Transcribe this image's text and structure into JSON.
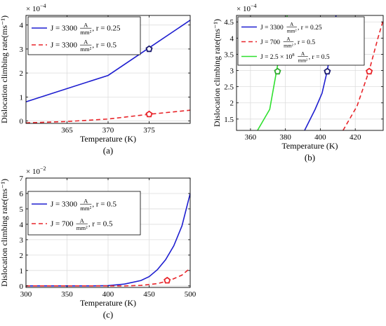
{
  "chart_data": [
    {
      "id": "a",
      "type": "line",
      "panel_label": "(a)",
      "xlabel": "Temperature (K)",
      "ylabel": "Dislocation climbing rate(ms⁻¹)",
      "y_multiplier": "× 10",
      "y_exponent": "−4",
      "xlim": [
        360,
        380
      ],
      "ylim": [
        -0.1,
        4.4
      ],
      "xticks": [
        365,
        370,
        375
      ],
      "yticks": [
        0,
        1,
        2,
        3,
        4
      ],
      "legend_position": "top-left",
      "series": [
        {
          "name_main": "J = 3300",
          "name_num": "A",
          "name_den": "mm²",
          "name_tail": ", r = 0.25",
          "color": "#1f1fd0",
          "dash": "solid",
          "points": [
            [
              360,
              0.8
            ],
            [
              365,
              1.35
            ],
            [
              370,
              1.9
            ],
            [
              375,
              3.05
            ],
            [
              380,
              4.2
            ]
          ]
        },
        {
          "name_main": "J = 3300",
          "name_num": "A",
          "name_den": "mm²",
          "name_tail": ", r = 0.5",
          "color": "#e8252a",
          "dash": "dashed",
          "points": [
            [
              360,
              -0.08
            ],
            [
              365,
              -0.02
            ],
            [
              370,
              0.08
            ],
            [
              375,
              0.28
            ],
            [
              380,
              0.45
            ]
          ]
        }
      ],
      "markers": [
        {
          "x": 375,
          "y": 3.0,
          "color": "#1a1a6e",
          "shape": "pentagon"
        },
        {
          "x": 375,
          "y": 0.28,
          "color": "#e8252a",
          "shape": "pentagon"
        }
      ]
    },
    {
      "id": "b",
      "type": "line",
      "panel_label": "(b)",
      "xlabel": "Temperature (K)",
      "ylabel": "Dislocation climbing rate(ms⁻¹)",
      "y_multiplier": "× 10",
      "y_exponent": "−4",
      "xlim": [
        352,
        436
      ],
      "ylim": [
        1.15,
        4.7
      ],
      "xticks": [
        360,
        380,
        400,
        420
      ],
      "yticks": [
        1.5,
        2,
        2.5,
        3,
        3.5,
        4,
        4.5
      ],
      "legend_position": "top-left",
      "series": [
        {
          "name_main": "J = 3300",
          "name_num": "A",
          "name_den": "mm²",
          "name_tail": ", r = 0.25",
          "color": "#1f1fd0",
          "dash": "solid",
          "points": [
            [
              391,
              1.15
            ],
            [
              397,
              1.8
            ],
            [
              401,
              2.3
            ],
            [
              404,
              3.0
            ],
            [
              407,
              4.0
            ],
            [
              409,
              4.7
            ]
          ]
        },
        {
          "name_main": "J = 700",
          "name_num": "A",
          "name_den": "mm²",
          "name_tail": ", r = 0.5",
          "color": "#e8252a",
          "dash": "dashed",
          "points": [
            [
              413,
              1.15
            ],
            [
              421,
              1.9
            ],
            [
              428,
              3.0
            ],
            [
              433,
              4.0
            ],
            [
              436,
              4.55
            ]
          ]
        },
        {
          "name_main": "J = 2.5 × 10",
          "name_sup": "8",
          "name_num": "A",
          "name_den": "mm²",
          "name_tail": ", r = 0.5",
          "color": "#2ee02e",
          "dash": "solid",
          "points": [
            [
              364,
              1.15
            ],
            [
              371,
              1.8
            ],
            [
              375,
              3.0
            ],
            [
              379,
              4.2
            ],
            [
              381,
              4.7
            ]
          ]
        }
      ],
      "markers": [
        {
          "x": 404,
          "y": 2.97,
          "color": "#1a1a6e",
          "shape": "pentagon"
        },
        {
          "x": 428,
          "y": 2.97,
          "color": "#e8252a",
          "shape": "pentagon"
        },
        {
          "x": 375.5,
          "y": 2.97,
          "color": "#2ea82e",
          "shape": "pentagon"
        }
      ]
    },
    {
      "id": "c",
      "type": "line",
      "panel_label": "(c)",
      "xlabel": "Temperature (K)",
      "ylabel": "Dislocation climbing rate(ms⁻¹)",
      "y_multiplier": "× 10",
      "y_exponent": "−2",
      "xlim": [
        300,
        500
      ],
      "ylim": [
        -0.1,
        7
      ],
      "xticks": [
        300,
        350,
        400,
        450,
        500
      ],
      "yticks": [
        0,
        1,
        2,
        3,
        4,
        5,
        6,
        7
      ],
      "legend_position": "top-left",
      "series": [
        {
          "name_main": "J = 3300",
          "name_num": "A",
          "name_den": "mm²",
          "name_tail": ", r = 0.5",
          "color": "#1f1fd0",
          "dash": "solid",
          "points": [
            [
              300,
              0
            ],
            [
              380,
              0
            ],
            [
              400,
              0.02
            ],
            [
              420,
              0.12
            ],
            [
              440,
              0.35
            ],
            [
              450,
              0.6
            ],
            [
              460,
              1.05
            ],
            [
              470,
              1.7
            ],
            [
              480,
              2.6
            ],
            [
              490,
              3.9
            ],
            [
              500,
              6.0
            ]
          ]
        },
        {
          "name_main": "J = 700",
          "name_num": "A",
          "name_den": "mm²",
          "name_tail": ", r = 0.5",
          "color": "#e8252a",
          "dash": "dashed",
          "points": [
            [
              300,
              0
            ],
            [
              420,
              0
            ],
            [
              440,
              0.03
            ],
            [
              460,
              0.15
            ],
            [
              475,
              0.35
            ],
            [
              490,
              0.7
            ],
            [
              500,
              1.15
            ]
          ]
        }
      ],
      "markers": [
        {
          "x": 472,
          "y": 0.35,
          "color": "#e8252a",
          "shape": "pentagon"
        }
      ]
    }
  ]
}
